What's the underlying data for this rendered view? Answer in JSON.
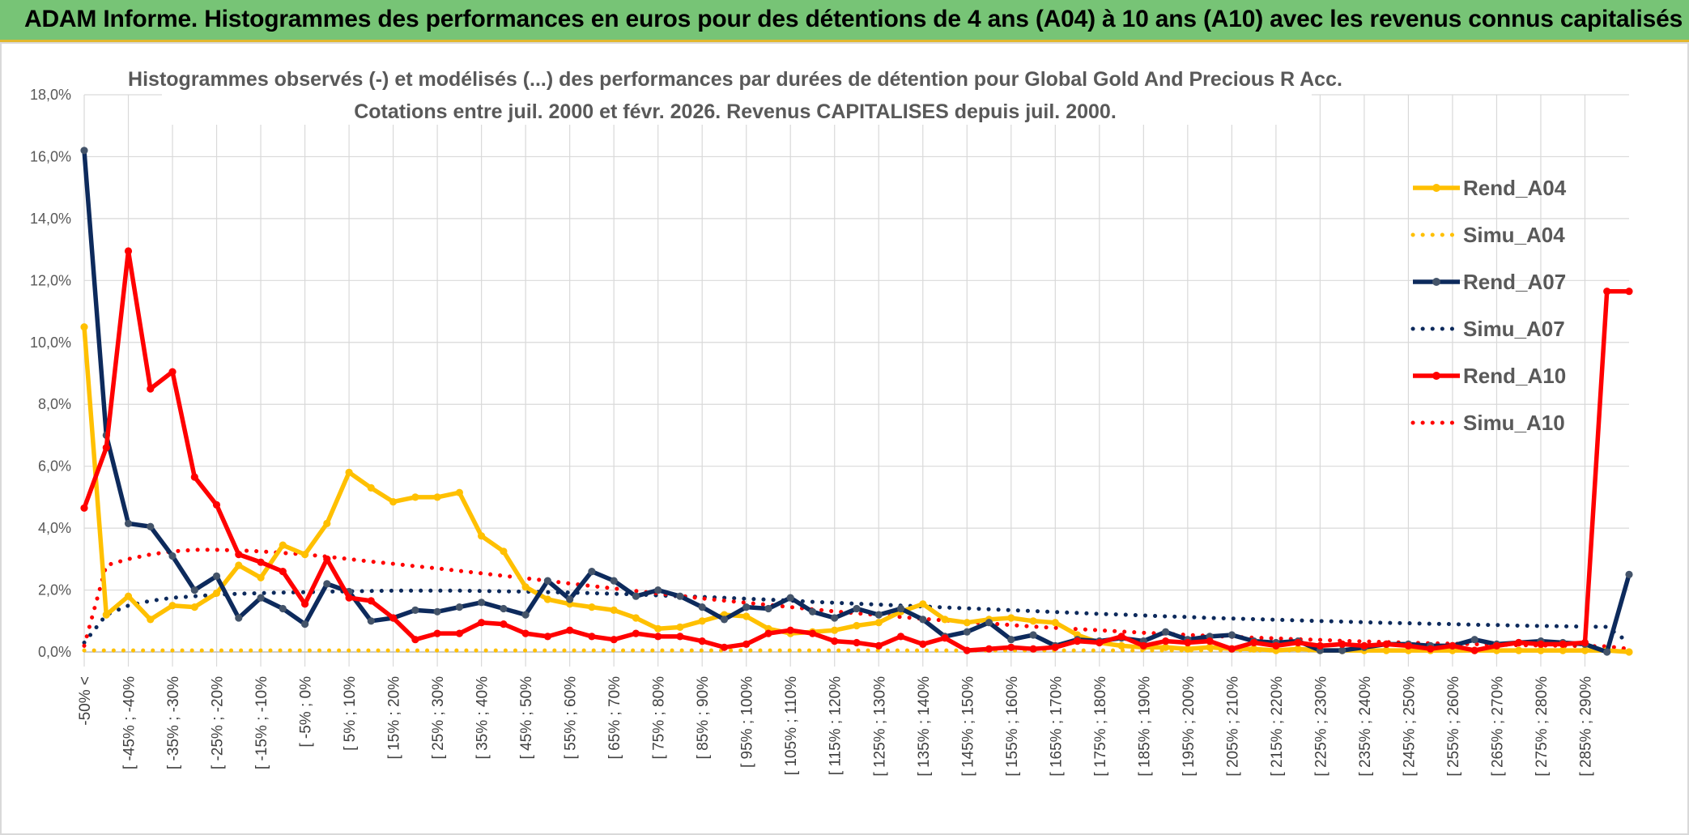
{
  "banner": {
    "title": "ADAM Informe. Histogrammes des performances en euros pour des détentions de 4 ans (A04) à 10 ans (A10) avec les revenus connus capitalisés"
  },
  "colors": {
    "banner_bg": "#77c476",
    "accent_line": "#e2b82e",
    "a04": "#ffc000",
    "a07": "#0d2a5c",
    "a07_marker": "#44546a",
    "a10": "#ff0000",
    "grid": "#d9d9d9"
  },
  "chart_data": {
    "type": "line",
    "title": "Histogrammes observés (-) et modélisés (...) des performances par durées de détention pour Global Gold And Precious R Acc.",
    "subtitle": "Cotations entre juil. 2000 et févr. 2026. Revenus CAPITALISES depuis juil. 2000.",
    "xlabel": "",
    "ylabel": "",
    "ylim": [
      0,
      18
    ],
    "y_ticks": [
      "0,0%",
      "2,0%",
      "4,0%",
      "6,0%",
      "8,0%",
      "10,0%",
      "12,0%",
      "14,0%",
      "16,0%",
      "18,0%"
    ],
    "grid": true,
    "legend_position": "right",
    "x_labels": [
      "-50% <",
      "[ -45% ; -40%",
      "[ -35% ; -30%",
      "[ -25% ; -20%",
      "[ -15% ; -10%",
      "[ -5% ; 0%",
      "[ 5% ; 10%",
      "[ 15% ; 20%",
      "[ 25% ; 30%",
      "[ 35% ; 40%",
      "[ 45% ; 50%",
      "[ 55% ; 60%",
      "[ 65% ; 70%",
      "[ 75% ; 80%",
      "[ 85% ; 90%",
      "[ 95% ; 100%",
      "[ 105% ; 110%",
      "[ 115% ; 120%",
      "[ 125% ; 130%",
      "[ 135% ; 140%",
      "[ 145% ; 150%",
      "[ 155% ; 160%",
      "[ 165% ; 170%",
      "[ 175% ; 180%",
      "[ 185% ; 190%",
      "[ 195% ; 200%",
      "[ 205% ; 210%",
      "[ 215% ; 220%",
      "[ 225% ; 230%",
      "[ 235% ; 240%",
      "[ 245% ; 250%",
      "[ 255% ; 260%",
      "[ 265% ; 270%",
      "[ 275% ; 280%",
      "[ 285% ; 290%"
    ],
    "series": [
      {
        "name": "Rend_A04",
        "style": "solid",
        "color": "#ffc000",
        "markers": true,
        "values": [
          10.5,
          1.2,
          1.8,
          1.05,
          1.5,
          1.45,
          1.9,
          2.8,
          2.4,
          3.45,
          3.15,
          4.15,
          5.8,
          5.3,
          4.85,
          5.0,
          5.0,
          5.15,
          3.75,
          3.25,
          2.1,
          1.7,
          1.55,
          1.45,
          1.35,
          1.1,
          0.75,
          0.8,
          1.0,
          1.2,
          1.15,
          0.75,
          0.6,
          0.65,
          0.7,
          0.85,
          0.95,
          1.3,
          1.55,
          1.05,
          0.95,
          1.05,
          1.1,
          1.0,
          0.95,
          0.55,
          0.3,
          0.2,
          0.15,
          0.15,
          0.1,
          0.15,
          0.1,
          0.1,
          0.05,
          0.1,
          0.05,
          0.05,
          0.05,
          0.05,
          0.05,
          0.05,
          0.05,
          0.05,
          0.05,
          0.05,
          0.05,
          0.05,
          0.05,
          0.05,
          0.0
        ]
      },
      {
        "name": "Simu_A04",
        "style": "dotted",
        "color": "#ffc000",
        "markers": false,
        "values": [
          0.05,
          0.05,
          0.05,
          0.05,
          0.05,
          0.05,
          0.05,
          0.05,
          0.05,
          0.05,
          0.05,
          0.05,
          0.05,
          0.05,
          0.05,
          0.05,
          0.05,
          0.05,
          0.05,
          0.05,
          0.05,
          0.05,
          0.05,
          0.05,
          0.05,
          0.05,
          0.05,
          0.05,
          0.05,
          0.05,
          0.05,
          0.05,
          0.05,
          0.05,
          0.05,
          0.05,
          0.05,
          0.05,
          0.05,
          0.05,
          0.05,
          0.05,
          0.05,
          0.05,
          0.05,
          0.05,
          0.05,
          0.05,
          0.05,
          0.05,
          0.05,
          0.05,
          0.05,
          0.05,
          0.05,
          0.05,
          0.05,
          0.05,
          0.05,
          0.05,
          0.05,
          0.05,
          0.05,
          0.05,
          0.05,
          0.05,
          0.05,
          0.05,
          0.05,
          0.05,
          0.05
        ]
      },
      {
        "name": "Rend_A07",
        "style": "solid",
        "color": "#0d2a5c",
        "markers": true,
        "values": [
          16.2,
          7.0,
          4.15,
          4.05,
          3.1,
          2.0,
          2.45,
          1.1,
          1.75,
          1.4,
          0.9,
          2.2,
          1.95,
          1.0,
          1.1,
          1.35,
          1.3,
          1.45,
          1.6,
          1.4,
          1.2,
          2.3,
          1.7,
          2.6,
          2.3,
          1.8,
          2.0,
          1.8,
          1.45,
          1.05,
          1.45,
          1.4,
          1.75,
          1.3,
          1.1,
          1.4,
          1.2,
          1.4,
          1.05,
          0.5,
          0.65,
          0.95,
          0.4,
          0.55,
          0.2,
          0.4,
          0.35,
          0.45,
          0.35,
          0.65,
          0.4,
          0.5,
          0.55,
          0.35,
          0.3,
          0.35,
          0.05,
          0.05,
          0.15,
          0.25,
          0.25,
          0.2,
          0.2,
          0.4,
          0.25,
          0.3,
          0.35,
          0.3,
          0.25,
          0.0,
          2.5
        ]
      },
      {
        "name": "Simu_A07",
        "style": "dotted",
        "color": "#0d2a5c",
        "markers": false,
        "values": [
          0.3,
          1.2,
          1.5,
          1.65,
          1.75,
          1.8,
          1.85,
          1.88,
          1.9,
          1.92,
          1.93,
          1.95,
          1.96,
          1.97,
          1.98,
          1.98,
          1.98,
          1.98,
          1.97,
          1.96,
          1.95,
          1.93,
          1.92,
          1.9,
          1.88,
          1.86,
          1.83,
          1.8,
          1.78,
          1.75,
          1.72,
          1.69,
          1.66,
          1.62,
          1.59,
          1.56,
          1.53,
          1.5,
          1.47,
          1.44,
          1.41,
          1.38,
          1.35,
          1.32,
          1.29,
          1.26,
          1.23,
          1.21,
          1.18,
          1.15,
          1.13,
          1.1,
          1.08,
          1.06,
          1.04,
          1.02,
          1.0,
          0.98,
          0.96,
          0.94,
          0.93,
          0.91,
          0.9,
          0.88,
          0.87,
          0.85,
          0.84,
          0.83,
          0.82,
          0.81,
          0.3
        ]
      },
      {
        "name": "Rend_A10",
        "style": "solid",
        "color": "#ff0000",
        "markers": true,
        "values": [
          4.65,
          6.6,
          12.95,
          8.5,
          9.05,
          5.65,
          4.75,
          3.15,
          2.9,
          2.6,
          1.55,
          3.0,
          1.75,
          1.65,
          1.1,
          0.4,
          0.6,
          0.6,
          0.95,
          0.9,
          0.6,
          0.5,
          0.7,
          0.5,
          0.4,
          0.6,
          0.5,
          0.5,
          0.35,
          0.15,
          0.25,
          0.6,
          0.7,
          0.6,
          0.35,
          0.3,
          0.2,
          0.5,
          0.25,
          0.45,
          0.05,
          0.1,
          0.15,
          0.1,
          0.15,
          0.35,
          0.3,
          0.5,
          0.2,
          0.35,
          0.3,
          0.35,
          0.1,
          0.3,
          0.2,
          0.3,
          0.2,
          0.25,
          0.2,
          0.25,
          0.2,
          0.1,
          0.2,
          0.05,
          0.2,
          0.3,
          0.25,
          0.25,
          0.3,
          11.65,
          11.65
        ]
      },
      {
        "name": "Simu_A10",
        "style": "dotted",
        "color": "#ff0000",
        "markers": false,
        "values": [
          0.2,
          2.8,
          3.0,
          3.15,
          3.25,
          3.3,
          3.3,
          3.28,
          3.25,
          3.2,
          3.15,
          3.08,
          3.0,
          2.92,
          2.85,
          2.77,
          2.7,
          2.62,
          2.54,
          2.46,
          2.38,
          2.3,
          2.21,
          2.13,
          2.05,
          1.97,
          1.89,
          1.81,
          1.73,
          1.66,
          1.59,
          1.52,
          1.45,
          1.38,
          1.31,
          1.25,
          1.19,
          1.13,
          1.07,
          1.02,
          0.97,
          0.92,
          0.87,
          0.82,
          0.78,
          0.74,
          0.7,
          0.66,
          0.62,
          0.59,
          0.55,
          0.52,
          0.49,
          0.46,
          0.44,
          0.41,
          0.39,
          0.36,
          0.34,
          0.32,
          0.3,
          0.28,
          0.27,
          0.25,
          0.24,
          0.22,
          0.21,
          0.2,
          0.19,
          0.18,
          0.1
        ]
      }
    ]
  }
}
